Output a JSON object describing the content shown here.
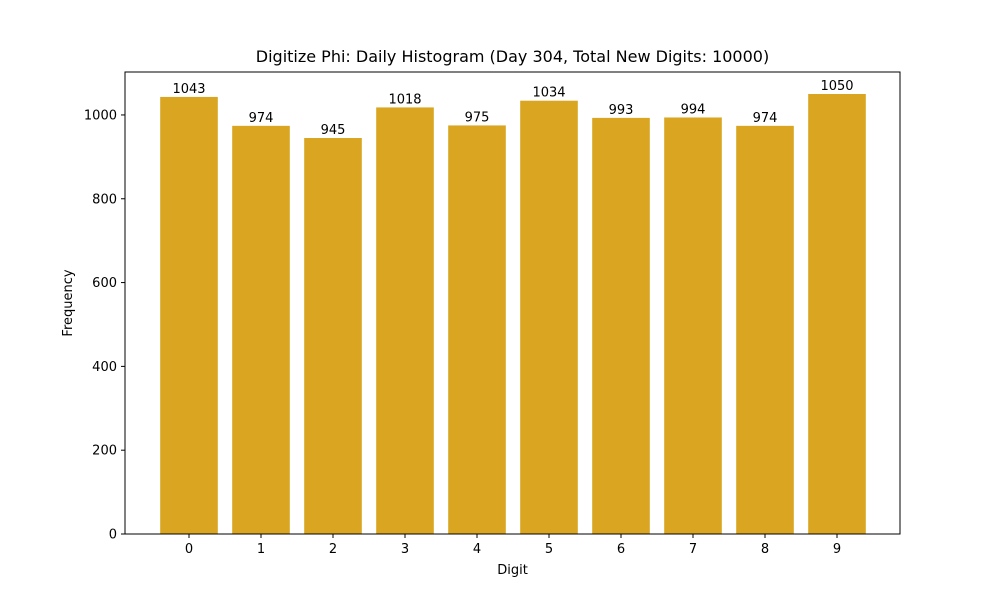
{
  "chart_data": {
    "type": "bar",
    "title": "Digitize Phi: Daily Histogram (Day 304, Total New Digits: 10000)",
    "xlabel": "Digit",
    "ylabel": "Frequency",
    "categories": [
      "0",
      "1",
      "2",
      "3",
      "4",
      "5",
      "6",
      "7",
      "8",
      "9"
    ],
    "values": [
      1043,
      974,
      945,
      1018,
      975,
      1034,
      993,
      994,
      974,
      1050
    ],
    "data_labels": [
      "1043",
      "974",
      "945",
      "1018",
      "975",
      "1034",
      "993",
      "994",
      "974",
      "1050"
    ],
    "ylim": [
      0,
      1102.5
    ],
    "yticks": [
      0,
      200,
      400,
      600,
      800,
      1000
    ],
    "ytick_labels": [
      "0",
      "200",
      "400",
      "600",
      "800",
      "1000"
    ],
    "bar_color": "#daa520",
    "grid": false,
    "legend": "none"
  }
}
